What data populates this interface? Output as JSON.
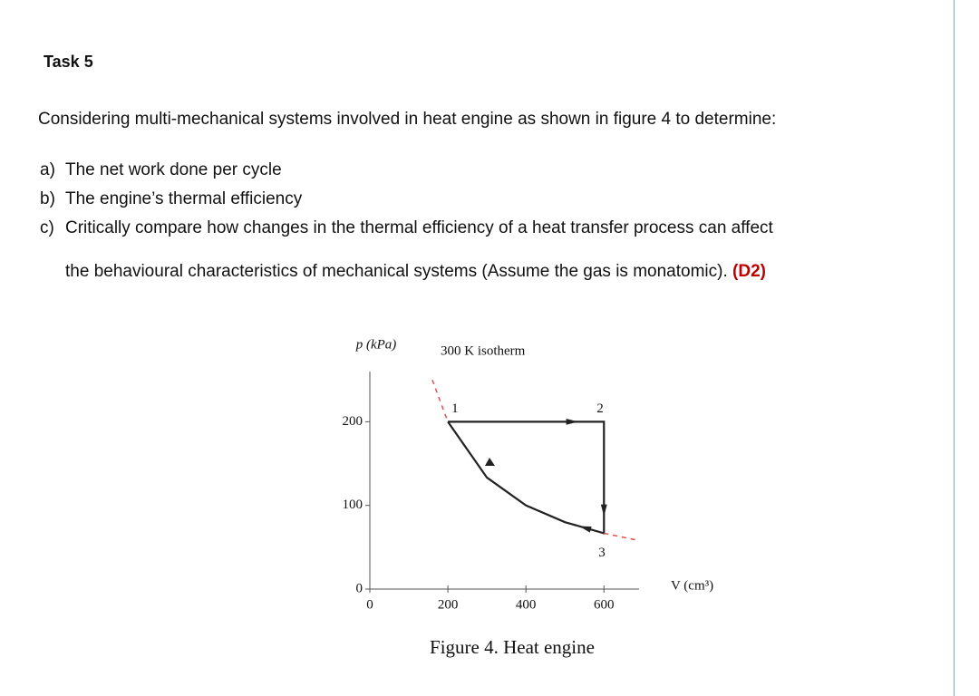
{
  "task": {
    "title": "Task 5",
    "intro": "Considering multi-mechanical systems involved in heat engine as shown in figure 4 to determine:",
    "items": [
      {
        "marker": "a)",
        "line1": "The net work done per cycle"
      },
      {
        "marker": "b)",
        "line1": "The engine’s thermal efficiency"
      },
      {
        "marker": "c)",
        "line1": "Critically compare how changes in the thermal efficiency of a heat transfer process can affect",
        "line2": "the behavioural characteristics of mechanical systems (Assume the gas is monatomic).",
        "tag": "(D2)"
      }
    ]
  },
  "chart_data": {
    "type": "line",
    "caption": "Figure 4. Heat engine",
    "y_label": "p (kPa)",
    "x_label": "V (cm³)",
    "annotation": "300 K isotherm",
    "xlim": [
      0,
      690
    ],
    "ylim": [
      0,
      260
    ],
    "xticks": [
      0,
      200,
      400,
      600
    ],
    "yticks": [
      0,
      100,
      200
    ],
    "series": [
      {
        "name": "cycle",
        "color": "#222222",
        "x": [
          200,
          600,
          600,
          500,
          400,
          300,
          200
        ],
        "values": [
          200,
          200,
          66.7,
          80,
          100,
          133.3,
          200
        ]
      },
      {
        "name": "isotherm",
        "color": "#e05050",
        "x": [
          160,
          200,
          null,
          600,
          690
        ],
        "values": [
          250,
          200,
          null,
          66.7,
          58
        ]
      }
    ],
    "point_labels": [
      "1",
      "2",
      "3"
    ]
  }
}
